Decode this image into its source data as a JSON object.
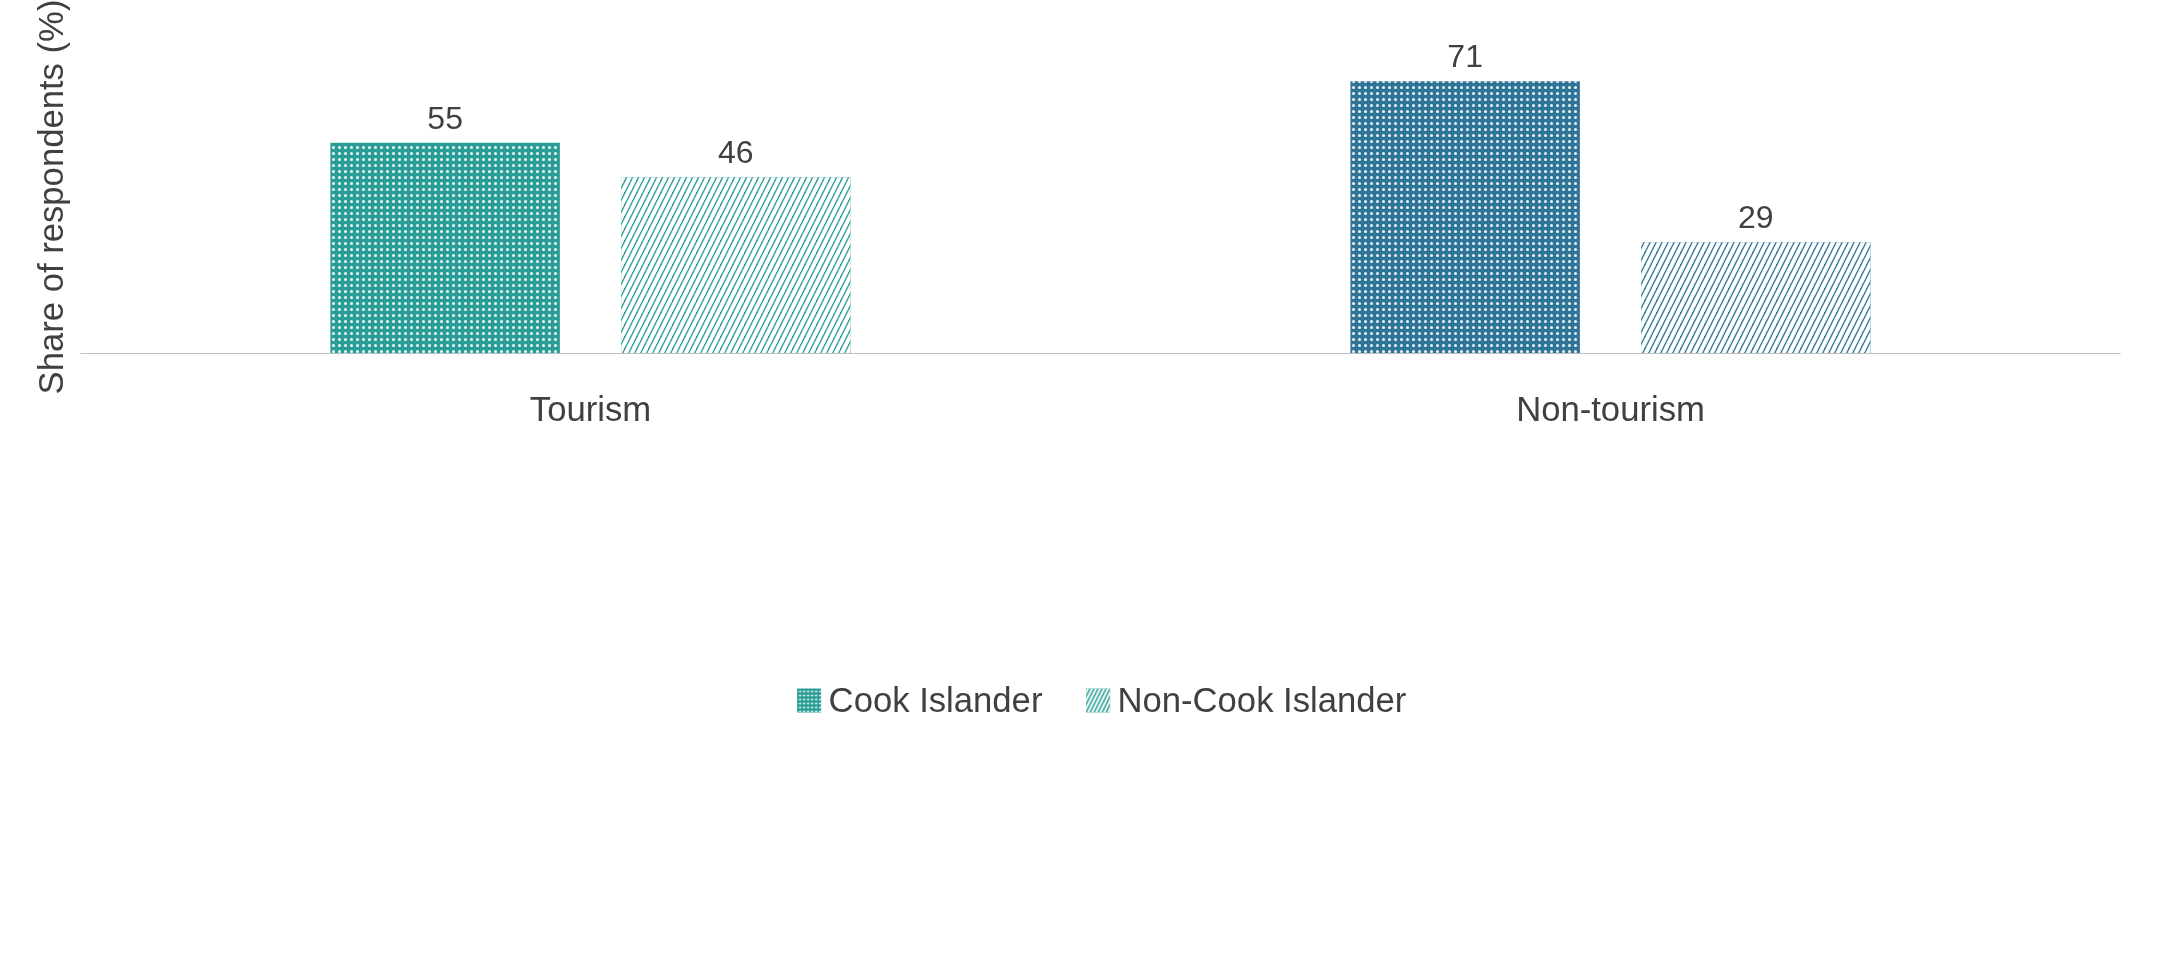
{
  "chart_data": {
    "type": "bar",
    "ylabel": "Share of respondents (%)",
    "categories": [
      "Tourism",
      "Non-tourism"
    ],
    "series": [
      {
        "name": "Cook Islander",
        "color": "#2a9d96",
        "colors": [
          "#2a9d96",
          "#2f7597"
        ],
        "values": [
          55,
          71
        ]
      },
      {
        "name": "Non-Cook Islander",
        "color": "#2a9d96",
        "colors": [
          "#2a9d96",
          "#2f7597"
        ],
        "values": [
          46,
          29
        ]
      }
    ],
    "data_labels": true,
    "legend": "bottom",
    "grid": false,
    "tick_labels": "x"
  }
}
